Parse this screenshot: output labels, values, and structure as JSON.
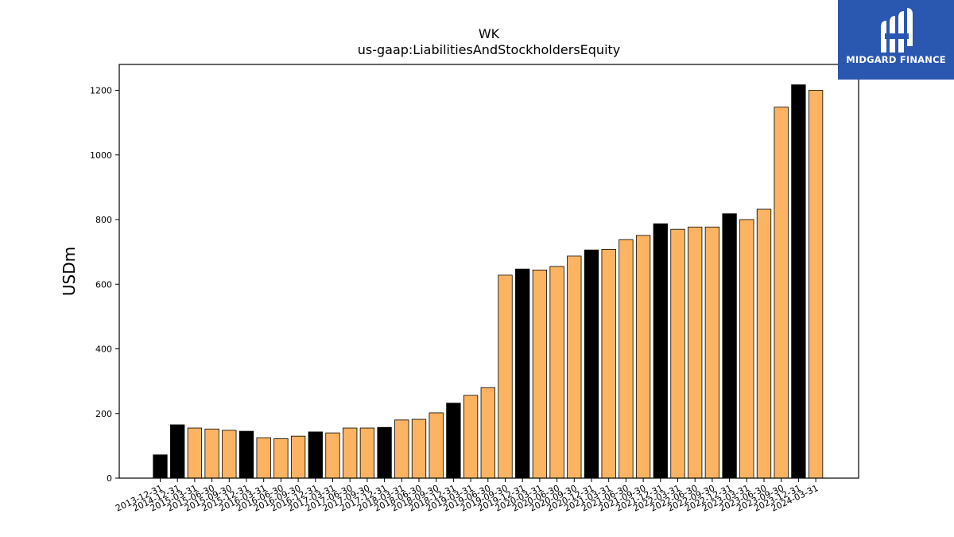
{
  "brand": {
    "name": "MIDGARD FINANCE",
    "color": "#2a57b0"
  },
  "chart_data": {
    "type": "bar",
    "title": "WK",
    "subtitle": "us-gaap:LiabilitiesAndStockholdersEquity",
    "ylabel": "USDm",
    "xlabel": "",
    "ylim": [
      0,
      1280
    ],
    "yticks": [
      0,
      200,
      400,
      600,
      800,
      1000,
      1200
    ],
    "grid": false,
    "colors": {
      "annual": "#000000",
      "quarterly": "#fdb462",
      "edge": "#000000"
    },
    "categories": [
      "2013-12-31",
      "2014-12-31",
      "2015-03-31",
      "2015-06-30",
      "2015-09-30",
      "2015-12-31",
      "2016-03-31",
      "2016-06-30",
      "2016-09-30",
      "2016-12-31",
      "2017-03-31",
      "2017-06-30",
      "2017-09-30",
      "2017-12-31",
      "2018-03-31",
      "2018-06-30",
      "2018-09-30",
      "2018-12-31",
      "2019-03-31",
      "2019-06-30",
      "2019-09-30",
      "2019-12-31",
      "2020-03-31",
      "2020-06-30",
      "2020-09-30",
      "2020-12-31",
      "2021-03-31",
      "2021-06-30",
      "2021-09-30",
      "2021-12-31",
      "2022-03-31",
      "2022-06-30",
      "2022-09-30",
      "2022-12-31",
      "2023-03-31",
      "2023-06-30",
      "2023-09-30",
      "2023-12-31",
      "2024-03-31"
    ],
    "values": [
      72,
      165,
      155,
      152,
      148,
      145,
      125,
      122,
      130,
      143,
      140,
      155,
      155,
      157,
      180,
      182,
      202,
      232,
      256,
      280,
      628,
      647,
      644,
      655,
      687,
      706,
      708,
      738,
      751,
      787,
      770,
      777,
      777,
      818,
      800,
      832,
      1148,
      1217,
      1200
    ],
    "period_type": [
      "annual",
      "annual",
      "quarterly",
      "quarterly",
      "quarterly",
      "annual",
      "quarterly",
      "quarterly",
      "quarterly",
      "annual",
      "quarterly",
      "quarterly",
      "quarterly",
      "annual",
      "quarterly",
      "quarterly",
      "quarterly",
      "annual",
      "quarterly",
      "quarterly",
      "quarterly",
      "annual",
      "quarterly",
      "quarterly",
      "quarterly",
      "annual",
      "quarterly",
      "quarterly",
      "quarterly",
      "annual",
      "quarterly",
      "quarterly",
      "quarterly",
      "annual",
      "quarterly",
      "quarterly",
      "quarterly",
      "annual",
      "quarterly"
    ]
  }
}
